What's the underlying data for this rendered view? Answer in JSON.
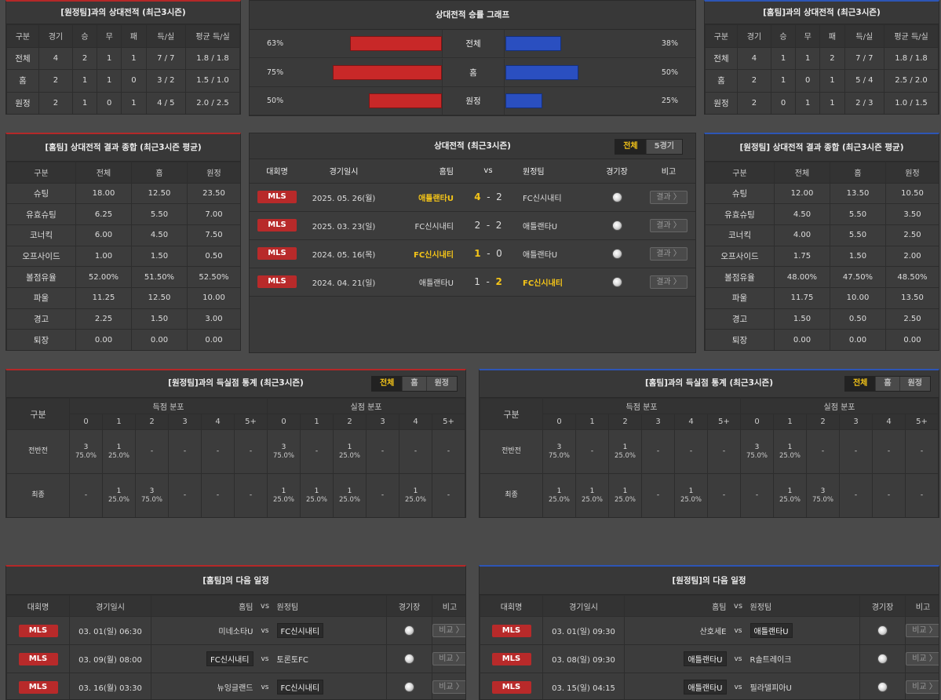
{
  "h2h_away": {
    "title": "[원정팀]과의 상대전적 (최근3시즌)",
    "headers": [
      "구분",
      "경기",
      "승",
      "무",
      "패",
      "득/실",
      "평균 득/실"
    ],
    "rows": [
      [
        "전체",
        "4",
        "2",
        "1",
        "1",
        "7 / 7",
        "1.8 / 1.8"
      ],
      [
        "홈",
        "2",
        "1",
        "1",
        "0",
        "3 / 2",
        "1.5 / 1.0"
      ],
      [
        "원정",
        "2",
        "1",
        "0",
        "1",
        "4 / 5",
        "2.0 / 2.5"
      ]
    ]
  },
  "winrate": {
    "title": "상대전적 승률 그래프",
    "rows": [
      {
        "label": "전체",
        "home": "63%",
        "away": "38%",
        "home_val": 63,
        "away_val": 38
      },
      {
        "label": "홈",
        "home": "75%",
        "away": "50%",
        "home_val": 75,
        "away_val": 50
      },
      {
        "label": "원정",
        "home": "50%",
        "away": "25%",
        "home_val": 50,
        "away_val": 25
      }
    ]
  },
  "h2h_home": {
    "title": "[홈팀]과의 상대전적 (최근3시즌)",
    "headers": [
      "구분",
      "경기",
      "승",
      "무",
      "패",
      "득/실",
      "평균 득/실"
    ],
    "rows": [
      [
        "전체",
        "4",
        "1",
        "1",
        "2",
        "7 / 7",
        "1.8 / 1.8"
      ],
      [
        "홈",
        "2",
        "1",
        "0",
        "1",
        "5 / 4",
        "2.5 / 2.0"
      ],
      [
        "원정",
        "2",
        "0",
        "1",
        "1",
        "2 / 3",
        "1.0 / 1.5"
      ]
    ]
  },
  "summary_home": {
    "title": "[홈팀] 상대전적 결과 종합 (최근3시즌 평균)",
    "headers": [
      "구분",
      "전체",
      "홈",
      "원정"
    ],
    "rows": [
      [
        "슈팅",
        "18.00",
        "12.50",
        "23.50"
      ],
      [
        "유효슈팅",
        "6.25",
        "5.50",
        "7.00"
      ],
      [
        "코너킥",
        "6.00",
        "4.50",
        "7.50"
      ],
      [
        "오프사이드",
        "1.00",
        "1.50",
        "0.50"
      ],
      [
        "볼점유율",
        "52.00%",
        "51.50%",
        "52.50%"
      ],
      [
        "파울",
        "11.25",
        "12.50",
        "10.00"
      ],
      [
        "경고",
        "2.25",
        "1.50",
        "3.00"
      ],
      [
        "퇴장",
        "0.00",
        "0.00",
        "0.00"
      ]
    ]
  },
  "summary_away": {
    "title": "[원정팀] 상대전적 결과 종합 (최근3시즌 평균)",
    "headers": [
      "구분",
      "전체",
      "홈",
      "원정"
    ],
    "rows": [
      [
        "슈팅",
        "12.00",
        "13.50",
        "10.50"
      ],
      [
        "유효슈팅",
        "4.50",
        "5.50",
        "3.50"
      ],
      [
        "코너킥",
        "4.00",
        "5.50",
        "2.50"
      ],
      [
        "오프사이드",
        "1.75",
        "1.50",
        "2.00"
      ],
      [
        "볼점유율",
        "48.00%",
        "47.50%",
        "48.50%"
      ],
      [
        "파울",
        "11.75",
        "10.00",
        "13.50"
      ],
      [
        "경고",
        "1.50",
        "0.50",
        "2.50"
      ],
      [
        "퇴장",
        "0.00",
        "0.00",
        "0.00"
      ]
    ]
  },
  "h2h_matches": {
    "title": "상대전적 (최근3시즌)",
    "tabs": [
      "전체",
      "5경기"
    ],
    "headers": {
      "league": "대회명",
      "date": "경기일시",
      "home": "홈팀",
      "vs": "vs",
      "away": "원정팀",
      "venue": "경기장",
      "note": "비고"
    },
    "rows": [
      {
        "league": "MLS",
        "date": "2025. 05. 26(월)",
        "home": "애틀랜타U",
        "hs": "4",
        "as": "2",
        "away": "FC신시내티",
        "winner": "home",
        "btn": "결과 〉"
      },
      {
        "league": "MLS",
        "date": "2025. 03. 23(일)",
        "home": "FC신시내티",
        "hs": "2",
        "as": "2",
        "away": "애틀랜타U",
        "winner": "none",
        "btn": "결과 〉"
      },
      {
        "league": "MLS",
        "date": "2024. 05. 16(목)",
        "home": "FC신시내티",
        "hs": "1",
        "as": "0",
        "away": "애틀랜타U",
        "winner": "home",
        "btn": "결과 〉"
      },
      {
        "league": "MLS",
        "date": "2024. 04. 21(일)",
        "home": "애틀랜타U",
        "hs": "1",
        "as": "2",
        "away": "FC신시내티",
        "winner": "away",
        "btn": "결과 〉"
      }
    ]
  },
  "goals_left": {
    "title": "[원정팀]과의 득실점 통계 (최근3시즌)",
    "tabs": [
      "전체",
      "홈",
      "원정"
    ],
    "h_category": "구분",
    "h_scored": "득점 분포",
    "h_conceded": "실점 분포",
    "cols": [
      "0",
      "1",
      "2",
      "3",
      "4",
      "5+",
      "0",
      "1",
      "2",
      "3",
      "4",
      "5+"
    ],
    "rows": [
      {
        "label": "전반전",
        "cells": [
          [
            "3",
            "75.0%"
          ],
          [
            "1",
            "25.0%"
          ],
          [
            "-",
            ""
          ],
          [
            "-",
            ""
          ],
          [
            "-",
            ""
          ],
          [
            "-",
            ""
          ],
          [
            "3",
            "75.0%"
          ],
          [
            "-",
            ""
          ],
          [
            "1",
            "25.0%"
          ],
          [
            "-",
            ""
          ],
          [
            "-",
            ""
          ],
          [
            "-",
            ""
          ]
        ]
      },
      {
        "label": "최종",
        "cells": [
          [
            "-",
            ""
          ],
          [
            "1",
            "25.0%"
          ],
          [
            "3",
            "75.0%"
          ],
          [
            "-",
            ""
          ],
          [
            "-",
            ""
          ],
          [
            "-",
            ""
          ],
          [
            "1",
            "25.0%"
          ],
          [
            "1",
            "25.0%"
          ],
          [
            "1",
            "25.0%"
          ],
          [
            "-",
            ""
          ],
          [
            "1",
            "25.0%"
          ],
          [
            "-",
            ""
          ]
        ]
      }
    ]
  },
  "goals_right": {
    "title": "[홈팀]과의 득실점 통계 (최근3시즌)",
    "tabs": [
      "전체",
      "홈",
      "원정"
    ],
    "h_category": "구분",
    "h_scored": "득점 분포",
    "h_conceded": "실점 분포",
    "cols": [
      "0",
      "1",
      "2",
      "3",
      "4",
      "5+",
      "0",
      "1",
      "2",
      "3",
      "4",
      "5+"
    ],
    "rows": [
      {
        "label": "전반전",
        "cells": [
          [
            "3",
            "75.0%"
          ],
          [
            "-",
            ""
          ],
          [
            "1",
            "25.0%"
          ],
          [
            "-",
            ""
          ],
          [
            "-",
            ""
          ],
          [
            "-",
            ""
          ],
          [
            "3",
            "75.0%"
          ],
          [
            "1",
            "25.0%"
          ],
          [
            "-",
            ""
          ],
          [
            "-",
            ""
          ],
          [
            "-",
            ""
          ],
          [
            "-",
            ""
          ]
        ]
      },
      {
        "label": "최종",
        "cells": [
          [
            "1",
            "25.0%"
          ],
          [
            "1",
            "25.0%"
          ],
          [
            "1",
            "25.0%"
          ],
          [
            "-",
            ""
          ],
          [
            "1",
            "25.0%"
          ],
          [
            "-",
            ""
          ],
          [
            "-",
            ""
          ],
          [
            "1",
            "25.0%"
          ],
          [
            "3",
            "75.0%"
          ],
          [
            "-",
            ""
          ],
          [
            "-",
            ""
          ],
          [
            "-",
            ""
          ]
        ]
      }
    ]
  },
  "next_home": {
    "title": "[홈팀]의 다음 일정",
    "headers": {
      "league": "대회명",
      "date": "경기일시",
      "home": "홈팀",
      "vs": "vs",
      "away": "원정팀",
      "venue": "경기장",
      "note": "비고"
    },
    "rows": [
      {
        "league": "MLS",
        "date": "03. 01(일) 06:30",
        "home": "미네소타U",
        "away": "FC신시내티",
        "boxed": "away",
        "btn": "비교 〉"
      },
      {
        "league": "MLS",
        "date": "03. 09(월) 08:00",
        "home": "FC신시내티",
        "away": "토론토FC",
        "boxed": "home",
        "btn": "비교 〉"
      },
      {
        "league": "MLS",
        "date": "03. 16(월) 03:30",
        "home": "뉴잉글랜드",
        "away": "FC신시내티",
        "boxed": "away",
        "btn": "비교 〉"
      }
    ]
  },
  "next_away": {
    "title": "[원정팀]의 다음 일정",
    "headers": {
      "league": "대회명",
      "date": "경기일시",
      "home": "홈팀",
      "vs": "vs",
      "away": "원정팀",
      "venue": "경기장",
      "note": "비고"
    },
    "rows": [
      {
        "league": "MLS",
        "date": "03. 01(일) 09:30",
        "home": "산호세E",
        "away": "애틀랜타U",
        "boxed": "away",
        "btn": "비교 〉"
      },
      {
        "league": "MLS",
        "date": "03. 08(일) 09:30",
        "home": "애틀랜타U",
        "away": "R솔트레이크",
        "boxed": "home",
        "btn": "비교 〉"
      },
      {
        "league": "MLS",
        "date": "03. 15(일) 04:15",
        "home": "애틀랜타U",
        "away": "필라델피아U",
        "boxed": "home",
        "btn": "비교 〉"
      }
    ]
  }
}
